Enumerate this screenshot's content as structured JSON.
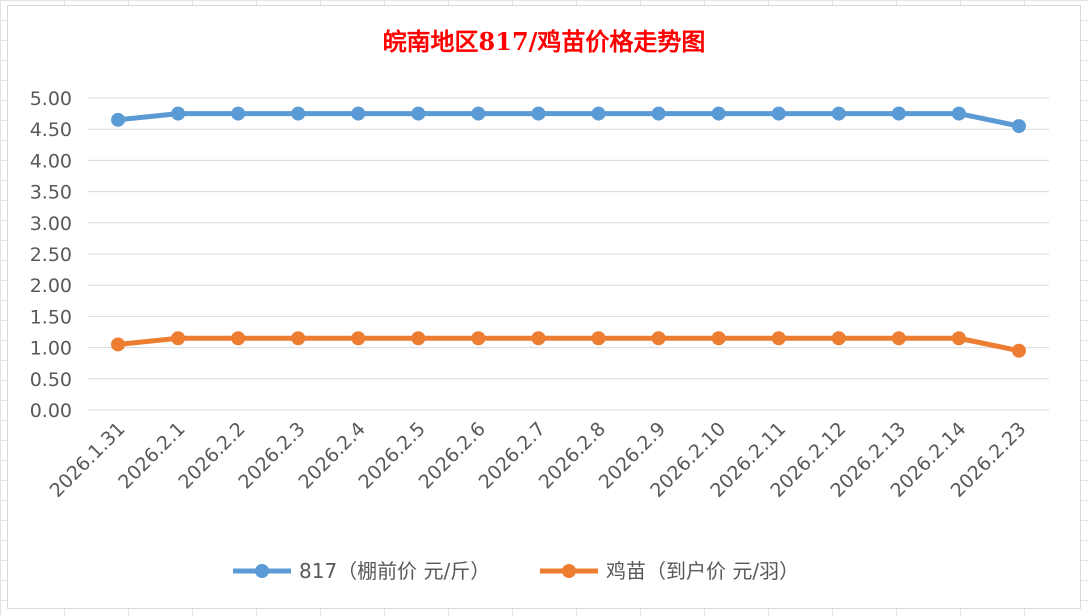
{
  "chart_data": {
    "type": "line",
    "title": "皖南地区817/鸡苗价格走势图",
    "categories": [
      "2026.1.31",
      "2026.2.1",
      "2026.2.2",
      "2026.2.3",
      "2026.2.4",
      "2026.2.5",
      "2026.2.6",
      "2026.2.7",
      "2026.2.8",
      "2026.2.9",
      "2026.2.10",
      "2026.2.11",
      "2026.2.12",
      "2026.2.13",
      "2026.2.14",
      "2026.2.23"
    ],
    "y_ticks": [
      "0.00",
      "0.50",
      "1.00",
      "1.50",
      "2.00",
      "2.50",
      "3.00",
      "3.50",
      "4.00",
      "4.50",
      "5.00"
    ],
    "ylim": [
      0,
      5
    ],
    "grid": true,
    "legend_position": "bottom",
    "series": [
      {
        "name": "817（棚前价 元/斤）",
        "color": "#5b9bd5",
        "values": [
          4.65,
          4.75,
          4.75,
          4.75,
          4.75,
          4.75,
          4.75,
          4.75,
          4.75,
          4.75,
          4.75,
          4.75,
          4.75,
          4.75,
          4.75,
          4.55
        ]
      },
      {
        "name": "鸡苗（到户价 元/羽）",
        "color": "#ed7d31",
        "values": [
          1.05,
          1.15,
          1.15,
          1.15,
          1.15,
          1.15,
          1.15,
          1.15,
          1.15,
          1.15,
          1.15,
          1.15,
          1.15,
          1.15,
          1.15,
          0.95
        ]
      }
    ]
  }
}
